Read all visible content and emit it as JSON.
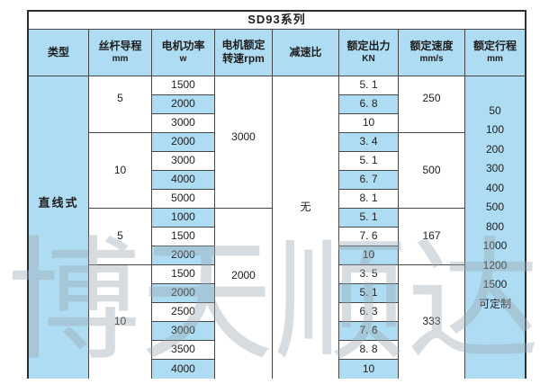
{
  "title": "SD93系列",
  "columns": [
    {
      "label": "类型",
      "unit": ""
    },
    {
      "label": "丝杆导程",
      "unit": "mm"
    },
    {
      "label": "电机功率",
      "unit": "w"
    },
    {
      "label": "电机额定",
      "unit": "转速rpm"
    },
    {
      "label": "减速比",
      "unit": ""
    },
    {
      "label": "额定出力",
      "unit": "KN"
    },
    {
      "label": "额定速度",
      "unit": "mm/s"
    },
    {
      "label": "额定行程",
      "unit": "mm"
    }
  ],
  "body": {
    "type": "直线式",
    "lead_groups": [
      {
        "value": "5"
      },
      {
        "value": "10"
      },
      {
        "value": "5"
      },
      {
        "value": "10"
      }
    ],
    "power_values": [
      "1500",
      "2000",
      "3000",
      "2000",
      "3000",
      "4000",
      "5000",
      "1000",
      "1500",
      "2000",
      "1500",
      "2000",
      "2500",
      "3000",
      "3500",
      "4000"
    ],
    "rpm_groups": [
      {
        "value": "3000"
      },
      {
        "value": "2000"
      }
    ],
    "reduction_ratio": "无",
    "output_values": [
      "5. 1",
      "6. 8",
      "10",
      "3. 4",
      "5. 1",
      "6. 7",
      "8. 1",
      "5. 1",
      "7. 6",
      "10",
      "3. 5",
      "5. 1",
      "6. 3",
      "7. 6",
      "8. 8",
      "10"
    ],
    "speed_groups": [
      {
        "value": "250"
      },
      {
        "value": "500"
      },
      {
        "value": "167"
      },
      {
        "value": "333"
      }
    ],
    "stroke_values": [
      "50",
      "100",
      "200",
      "300",
      "400",
      "500",
      "800",
      "1000",
      "1200",
      "1500",
      "可定制"
    ]
  },
  "watermark": {
    "chars": [
      "博",
      "天",
      "顺",
      "达"
    ]
  },
  "colors": {
    "cell_blue": "#aedcf2",
    "border": "#454545",
    "watermark_gray": "#98a7b2"
  }
}
